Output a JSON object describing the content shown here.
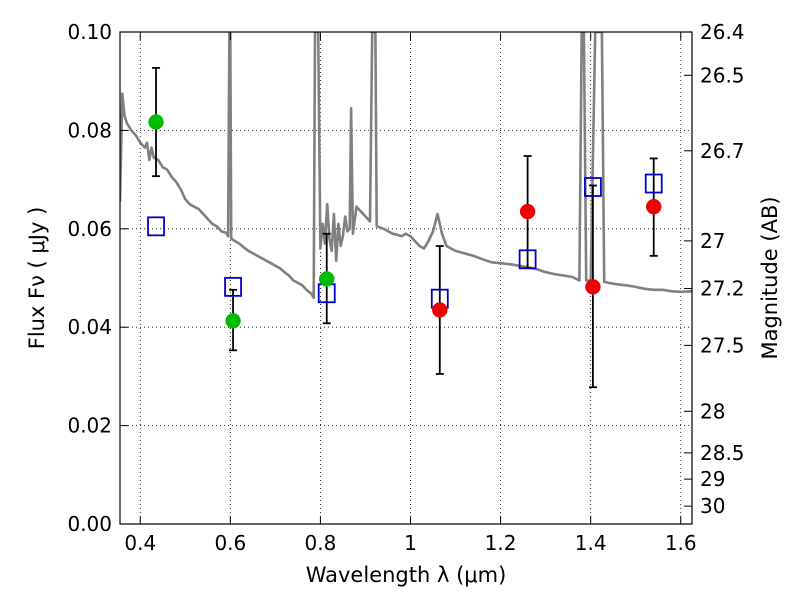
{
  "chart_data": {
    "type": "scatter",
    "xlabel": "Wavelength  λ (μm)",
    "ylabel": "Flux  Fν  ( μJy )",
    "ylabel_right": "Magnitude (AB)",
    "xlim": [
      0.355,
      1.625
    ],
    "ylim": [
      0.0,
      0.1
    ],
    "grid": true,
    "x_ticks": [
      {
        "value": 0.4,
        "label": "0.4"
      },
      {
        "value": 0.6,
        "label": "0.6"
      },
      {
        "value": 0.8,
        "label": "0.8"
      },
      {
        "value": 1.0,
        "label": "1"
      },
      {
        "value": 1.2,
        "label": "1.2"
      },
      {
        "value": 1.4,
        "label": "1.4"
      },
      {
        "value": 1.6,
        "label": "1.6"
      }
    ],
    "y_ticks": [
      {
        "value": 0.0,
        "label": "0.00"
      },
      {
        "value": 0.02,
        "label": "0.02"
      },
      {
        "value": 0.04,
        "label": "0.04"
      },
      {
        "value": 0.06,
        "label": "0.06"
      },
      {
        "value": 0.08,
        "label": "0.08"
      },
      {
        "value": 0.1,
        "label": "0.10"
      }
    ],
    "mag_ticks": [
      {
        "label": "26.4"
      },
      {
        "label": "26.5"
      },
      {
        "label": "26.7"
      },
      {
        "label": "27"
      },
      {
        "label": "27.2"
      },
      {
        "label": "27.5"
      },
      {
        "label": "28"
      },
      {
        "label": "28.5"
      },
      {
        "label": "29"
      },
      {
        "label": "30"
      }
    ],
    "template_spectrum": {
      "name": "",
      "color": "#808080",
      "points": [
        [
          0.355,
          0.0655
        ],
        [
          0.36,
          0.0875
        ],
        [
          0.365,
          0.083
        ],
        [
          0.37,
          0.0815
        ],
        [
          0.38,
          0.08
        ],
        [
          0.39,
          0.079
        ],
        [
          0.4,
          0.0775
        ],
        [
          0.41,
          0.0765
        ],
        [
          0.415,
          0.0775
        ],
        [
          0.42,
          0.074
        ],
        [
          0.425,
          0.0765
        ],
        [
          0.43,
          0.0745
        ],
        [
          0.44,
          0.074
        ],
        [
          0.45,
          0.0725
        ],
        [
          0.46,
          0.072
        ],
        [
          0.47,
          0.0705
        ],
        [
          0.48,
          0.0695
        ],
        [
          0.49,
          0.068
        ],
        [
          0.5,
          0.066
        ],
        [
          0.51,
          0.065
        ],
        [
          0.52,
          0.0645
        ],
        [
          0.53,
          0.064
        ],
        [
          0.54,
          0.063
        ],
        [
          0.55,
          0.062
        ],
        [
          0.56,
          0.061
        ],
        [
          0.57,
          0.0605
        ],
        [
          0.58,
          0.0595
        ],
        [
          0.59,
          0.0592
        ],
        [
          0.595,
          0.0585
        ],
        [
          0.598,
          0.1
        ],
        [
          0.6,
          0.1
        ],
        [
          0.602,
          0.058
        ],
        [
          0.61,
          0.0575
        ],
        [
          0.62,
          0.057
        ],
        [
          0.63,
          0.0562
        ],
        [
          0.64,
          0.0555
        ],
        [
          0.65,
          0.055
        ],
        [
          0.66,
          0.0545
        ],
        [
          0.67,
          0.054
        ],
        [
          0.68,
          0.0535
        ],
        [
          0.69,
          0.053
        ],
        [
          0.7,
          0.0525
        ],
        [
          0.71,
          0.052
        ],
        [
          0.72,
          0.0512
        ],
        [
          0.73,
          0.0505
        ],
        [
          0.74,
          0.0495
        ],
        [
          0.75,
          0.049
        ],
        [
          0.76,
          0.0485
        ],
        [
          0.77,
          0.0475
        ],
        [
          0.78,
          0.0468
        ],
        [
          0.785,
          0.046
        ],
        [
          0.788,
          0.1
        ],
        [
          0.795,
          0.1
        ],
        [
          0.8,
          0.056
        ],
        [
          0.805,
          0.061
        ],
        [
          0.81,
          0.057
        ],
        [
          0.815,
          0.065
        ],
        [
          0.82,
          0.058
        ],
        [
          0.825,
          0.0555
        ],
        [
          0.83,
          0.063
        ],
        [
          0.835,
          0.0535
        ],
        [
          0.84,
          0.061
        ],
        [
          0.845,
          0.0565
        ],
        [
          0.85,
          0.0585
        ],
        [
          0.855,
          0.0625
        ],
        [
          0.86,
          0.0595
        ],
        [
          0.865,
          0.06
        ],
        [
          0.868,
          0.0845
        ],
        [
          0.872,
          0.059
        ],
        [
          0.88,
          0.0645
        ],
        [
          0.89,
          0.0635
        ],
        [
          0.9,
          0.0625
        ],
        [
          0.91,
          0.0615
        ],
        [
          0.915,
          0.1
        ],
        [
          0.922,
          0.1
        ],
        [
          0.925,
          0.0605
        ],
        [
          0.94,
          0.06
        ],
        [
          0.95,
          0.0595
        ],
        [
          0.96,
          0.059
        ],
        [
          0.97,
          0.0588
        ],
        [
          0.98,
          0.0585
        ],
        [
          0.99,
          0.059
        ],
        [
          1.0,
          0.0585
        ],
        [
          1.01,
          0.0575
        ],
        [
          1.02,
          0.0565
        ],
        [
          1.03,
          0.056
        ],
        [
          1.04,
          0.0575
        ],
        [
          1.05,
          0.0595
        ],
        [
          1.06,
          0.063
        ],
        [
          1.07,
          0.059
        ],
        [
          1.08,
          0.0565
        ],
        [
          1.1,
          0.0555
        ],
        [
          1.12,
          0.055
        ],
        [
          1.14,
          0.0545
        ],
        [
          1.16,
          0.0538
        ],
        [
          1.18,
          0.0532
        ],
        [
          1.2,
          0.053
        ],
        [
          1.22,
          0.0528
        ],
        [
          1.24,
          0.0525
        ],
        [
          1.26,
          0.0522
        ],
        [
          1.28,
          0.0518
        ],
        [
          1.3,
          0.0512
        ],
        [
          1.32,
          0.0508
        ],
        [
          1.34,
          0.0505
        ],
        [
          1.36,
          0.0502
        ],
        [
          1.375,
          0.0495
        ],
        [
          1.38,
          0.1
        ],
        [
          1.385,
          0.1
        ],
        [
          1.39,
          0.0495
        ],
        [
          1.4,
          0.0495
        ],
        [
          1.41,
          0.1
        ],
        [
          1.425,
          0.1
        ],
        [
          1.43,
          0.0492
        ],
        [
          1.44,
          0.049
        ],
        [
          1.46,
          0.0487
        ],
        [
          1.48,
          0.0485
        ],
        [
          1.5,
          0.0482
        ],
        [
          1.52,
          0.0478
        ],
        [
          1.54,
          0.0476
        ],
        [
          1.56,
          0.0476
        ],
        [
          1.58,
          0.0473
        ],
        [
          1.6,
          0.0472
        ],
        [
          1.625,
          0.0473
        ]
      ]
    },
    "series": [
      {
        "name": "",
        "marker": "square-open",
        "color": "#0000cc",
        "points": [
          {
            "x": 0.435,
            "y": 0.0605
          },
          {
            "x": 0.606,
            "y": 0.0482
          },
          {
            "x": 0.814,
            "y": 0.0469
          },
          {
            "x": 1.065,
            "y": 0.0458
          },
          {
            "x": 1.26,
            "y": 0.0538
          },
          {
            "x": 1.405,
            "y": 0.0685
          },
          {
            "x": 1.54,
            "y": 0.0692
          }
        ]
      },
      {
        "name": "",
        "marker": "circle",
        "color": "#00bb00",
        "points": [
          {
            "x": 0.435,
            "y": 0.0817,
            "err_low": 0.0707,
            "err_high": 0.0927
          },
          {
            "x": 0.606,
            "y": 0.0413,
            "err_low": 0.0353,
            "err_high": 0.0476
          },
          {
            "x": 0.814,
            "y": 0.0498,
            "err_low": 0.0408,
            "err_high": 0.059
          }
        ]
      },
      {
        "name": "",
        "marker": "circle",
        "color": "#ee0000",
        "points": [
          {
            "x": 1.065,
            "y": 0.0435,
            "err_low": 0.0305,
            "err_high": 0.0565
          },
          {
            "x": 1.26,
            "y": 0.0635,
            "err_low": 0.052,
            "err_high": 0.0748
          },
          {
            "x": 1.405,
            "y": 0.0482,
            "err_low": 0.0278,
            "err_high": 0.0688
          },
          {
            "x": 1.54,
            "y": 0.0645,
            "err_low": 0.0545,
            "err_high": 0.0743
          }
        ]
      }
    ]
  }
}
